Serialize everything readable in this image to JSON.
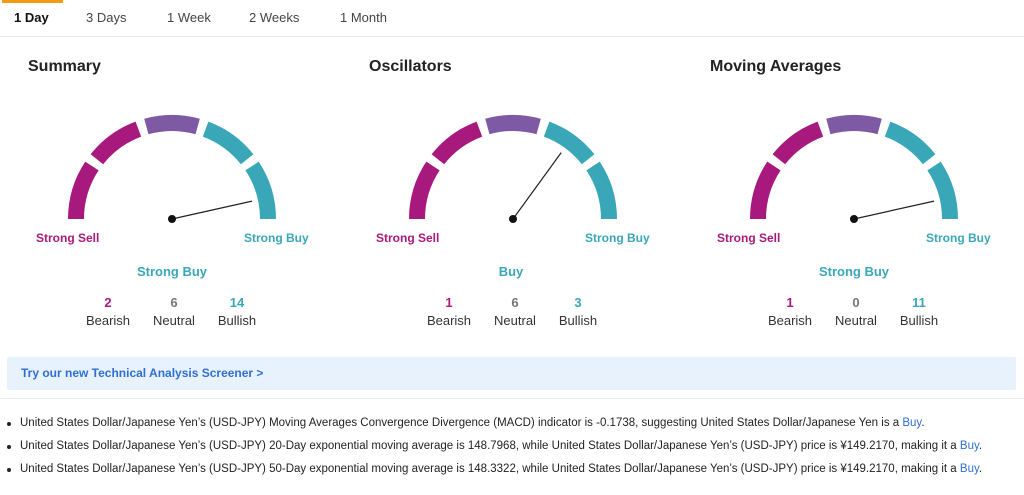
{
  "tabs": [
    {
      "label": "1 Day",
      "active": true
    },
    {
      "label": "3 Days",
      "active": false
    },
    {
      "label": "1 Week",
      "active": false
    },
    {
      "label": "2 Weeks",
      "active": false
    },
    {
      "label": "1 Month",
      "active": false
    }
  ],
  "gauge_labels": {
    "strong_sell": "Strong Sell",
    "strong_buy": "Strong Buy"
  },
  "count_labels": {
    "bearish": "Bearish",
    "neutral": "Neutral",
    "bullish": "Bullish"
  },
  "panels": [
    {
      "title": "Summary",
      "signal": "Strong Buy",
      "needle_level": 0.93,
      "bearish": "2",
      "neutral": "6",
      "bullish": "14"
    },
    {
      "title": "Oscillators",
      "signal": "Buy",
      "needle_level": 0.7,
      "bearish": "1",
      "neutral": "6",
      "bullish": "3"
    },
    {
      "title": "Moving Averages",
      "signal": "Strong Buy",
      "needle_level": 0.93,
      "bearish": "1",
      "neutral": "0",
      "bullish": "11"
    }
  ],
  "gauge_colors": [
    "#a8197d",
    "#a8197d",
    "#7e5aa5",
    "#3aa7b8",
    "#3aa7b8"
  ],
  "screener": {
    "label": "Try our new Technical Analysis Screener >"
  },
  "bullets": [
    {
      "text": "United States Dollar/Japanese Yen’s (USD-JPY) Moving Averages Convergence Divergence (MACD) indicator is -0.1738, suggesting United States Dollar/Japanese Yen is a ",
      "signal": "Buy",
      "end": "."
    },
    {
      "text": "United States Dollar/Japanese Yen’s (USD-JPY) 20-Day exponential moving average is 148.7968, while United States Dollar/Japanese Yen’s (USD-JPY) price is ¥149.2170, making it a ",
      "signal": "Buy",
      "end": "."
    },
    {
      "text": "United States Dollar/Japanese Yen’s (USD-JPY) 50-Day exponential moving average is 148.3322, while United States Dollar/Japanese Yen’s (USD-JPY) price is ¥149.2170, making it a ",
      "signal": "Buy",
      "end": "."
    }
  ]
}
